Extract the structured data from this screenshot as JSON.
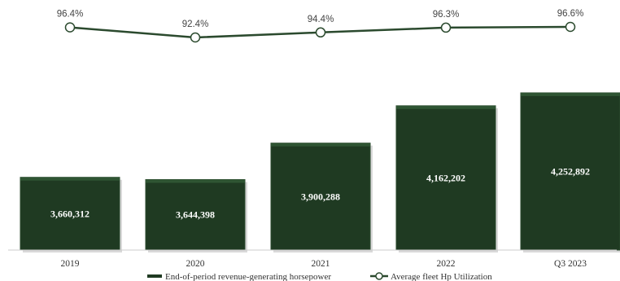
{
  "chart_data": {
    "type": "bar",
    "categories": [
      "2019",
      "2020",
      "2021",
      "2022",
      "Q3 2023"
    ],
    "series": [
      {
        "name": "End-of-period revenue-generating horsepower",
        "type": "bar",
        "values": [
          3660312,
          3644398,
          3900288,
          4162202,
          4252892
        ],
        "labels": [
          "3,660,312",
          "3,644,398",
          "3,900,288",
          "4,162,202",
          "4,252,892"
        ]
      },
      {
        "name": "Average fleet Hp Utilization",
        "type": "line",
        "values": [
          96.4,
          92.4,
          94.4,
          96.3,
          96.6
        ],
        "labels": [
          "96.4%",
          "92.4%",
          "94.4%",
          "96.3%",
          "96.6%"
        ]
      }
    ],
    "bar_ylim": [
      3150000,
      4350000
    ],
    "line_ylim": [
      92.4,
      96.6
    ],
    "legend_position": "bottom",
    "grid": false,
    "colors": {
      "bar_fill": "#1f3a22",
      "bar_edge": "#2b4a2e",
      "line": "#2b4a2e",
      "marker_fill": "#ffffff"
    }
  }
}
